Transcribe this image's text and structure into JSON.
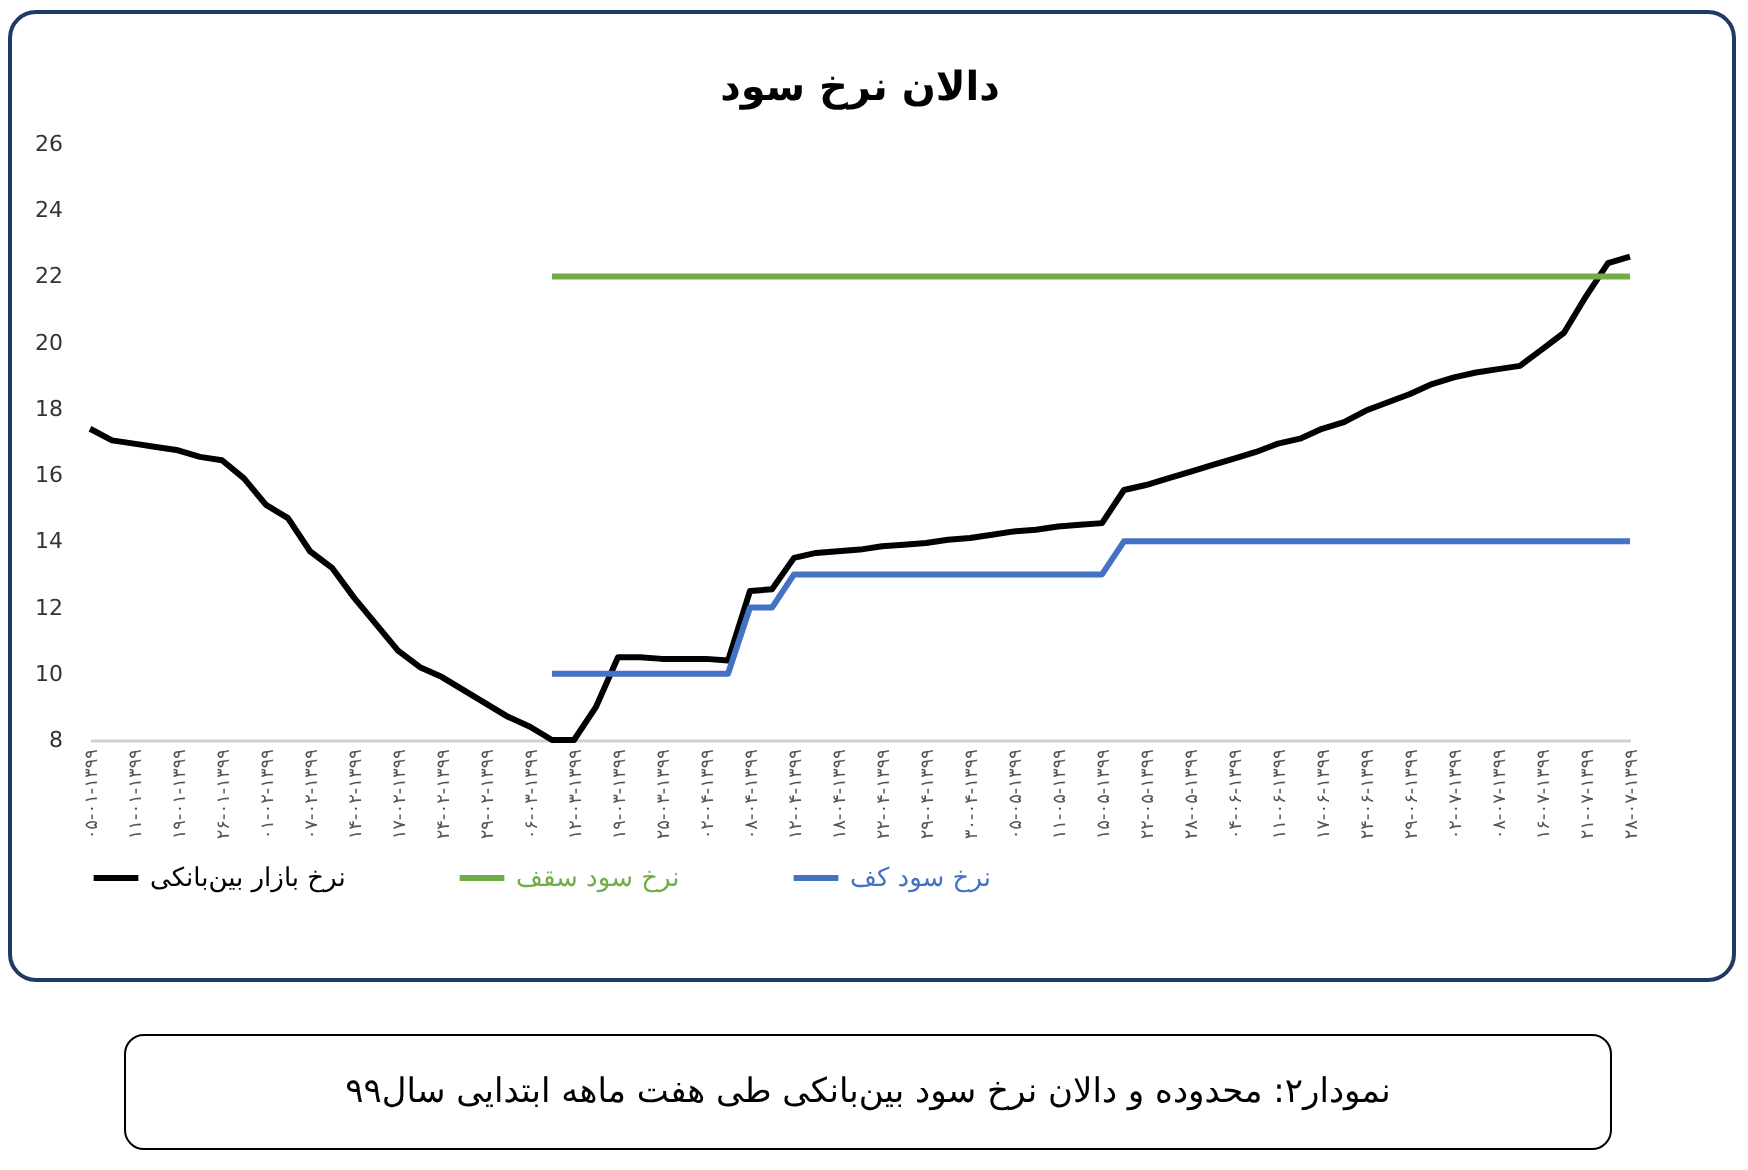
{
  "chart_data": {
    "type": "line",
    "title": "دالان نرخ سود",
    "categories": [
      "۰۵-۰۱-۱۳۹۹",
      null,
      "۱۱-۰۱-۱۳۹۹",
      null,
      "۱۹-۰۱-۱۳۹۹",
      null,
      "۲۶-۰۱-۱۳۹۹",
      null,
      "۰۱-۰۲-۱۳۹۹",
      null,
      "۰۷-۰۲-۱۳۹۹",
      null,
      "۱۴-۰۲-۱۳۹۹",
      null,
      "۱۷-۰۲-۱۳۹۹",
      null,
      "۲۴-۰۲-۱۳۹۹",
      null,
      "۲۹-۰۲-۱۳۹۹",
      null,
      "۰۶-۰۳-۱۳۹۹",
      null,
      "۱۲-۰۳-۱۳۹۹",
      null,
      "۱۹-۰۳-۱۳۹۹",
      null,
      "۲۵-۰۳-۱۳۹۹",
      null,
      "۰۲-۰۴-۱۳۹۹",
      null,
      "۰۸-۰۴-۱۳۹۹",
      null,
      "۱۲-۰۴-۱۳۹۹",
      null,
      "۱۸-۰۴-۱۳۹۹",
      null,
      "۲۲-۰۴-۱۳۹۹",
      null,
      "۲۹-۰۴-۱۳۹۹",
      null,
      "۳۰-۰۴-۱۳۹۹",
      null,
      "۰۵-۰۵-۱۳۹۹",
      null,
      "۱۱-۰۵-۱۳۹۹",
      null,
      "۱۵-۰۵-۱۳۹۹",
      null,
      "۲۲-۰۵-۱۳۹۹",
      null,
      "۲۸-۰۵-۱۳۹۹",
      null,
      "۰۴-۰۶-۱۳۹۹",
      null,
      "۱۱-۰۶-۱۳۹۹",
      null,
      "۱۷-۰۶-۱۳۹۹",
      null,
      "۲۴-۰۶-۱۳۹۹",
      null,
      "۲۹-۰۶-۱۳۹۹",
      null,
      "۰۲-۰۷-۱۳۹۹",
      null,
      "۰۸-۰۷-۱۳۹۹",
      null,
      "۱۶-۰۷-۱۳۹۹",
      null,
      "۲۱-۰۷-۱۳۹۹",
      null,
      "۲۸-۰۷-۱۳۹۹"
    ],
    "series": [
      {
        "name": "نرخ بازار بین‌بانکی",
        "color": "#000000",
        "values": [
          17.4,
          17.05,
          16.95,
          16.85,
          16.75,
          16.55,
          16.45,
          15.9,
          15.1,
          14.7,
          13.7,
          13.2,
          12.3,
          11.5,
          10.7,
          10.2,
          9.9,
          9.5,
          9.1,
          8.7,
          8.4,
          8.0,
          8.0,
          9.0,
          10.5,
          10.5,
          10.45,
          10.45,
          10.45,
          10.4,
          12.5,
          12.55,
          13.5,
          13.65,
          13.7,
          13.75,
          13.85,
          13.9,
          13.95,
          14.05,
          14.1,
          14.2,
          14.3,
          14.35,
          14.45,
          14.5,
          14.55,
          15.55,
          15.7,
          15.9,
          16.1,
          16.3,
          16.5,
          16.7,
          16.95,
          17.1,
          17.4,
          17.6,
          17.95,
          18.2,
          18.45,
          18.75,
          18.95,
          19.1,
          19.2,
          19.3,
          19.8,
          20.3,
          21.4,
          22.4,
          22.6
        ]
      },
      {
        "name": "نرخ سود سقف",
        "color": "#70ad47",
        "values": [
          null,
          null,
          null,
          null,
          null,
          null,
          null,
          null,
          null,
          null,
          null,
          null,
          null,
          null,
          null,
          null,
          null,
          null,
          null,
          null,
          null,
          22,
          22,
          22,
          22,
          22,
          22,
          22,
          22,
          22,
          22,
          22,
          22,
          22,
          22,
          22,
          22,
          22,
          22,
          22,
          22,
          22,
          22,
          22,
          22,
          22,
          22,
          22,
          22,
          22,
          22,
          22,
          22,
          22,
          22,
          22,
          22,
          22,
          22,
          22,
          22,
          22,
          22,
          22,
          22,
          22,
          22,
          22,
          22,
          22,
          22
        ]
      },
      {
        "name": "نرخ سود کف",
        "color": "#4472c4",
        "values": [
          null,
          null,
          null,
          null,
          null,
          null,
          null,
          null,
          null,
          null,
          null,
          null,
          null,
          null,
          null,
          null,
          null,
          null,
          null,
          null,
          null,
          10,
          10,
          10,
          10,
          10,
          10,
          10,
          10,
          10,
          12,
          12,
          13,
          13,
          13,
          13,
          13,
          13,
          13,
          13,
          13,
          13,
          13,
          13,
          13,
          13,
          13,
          14,
          14,
          14,
          14,
          14,
          14,
          14,
          14,
          14,
          14,
          14,
          14,
          14,
          14,
          14,
          14,
          14,
          14,
          14,
          14,
          14,
          14,
          14,
          14
        ]
      }
    ],
    "ylim": [
      8,
      26
    ],
    "yticks": [
      8,
      10,
      12,
      14,
      16,
      18,
      20,
      22,
      24,
      26
    ],
    "grid": false,
    "legend": "bottom",
    "annotations": [
      "نمودار۲:  محدوده و دالان نرخ سود بین‌بانکی طی هفت ماهه ابتدایی سال۹۹"
    ]
  }
}
